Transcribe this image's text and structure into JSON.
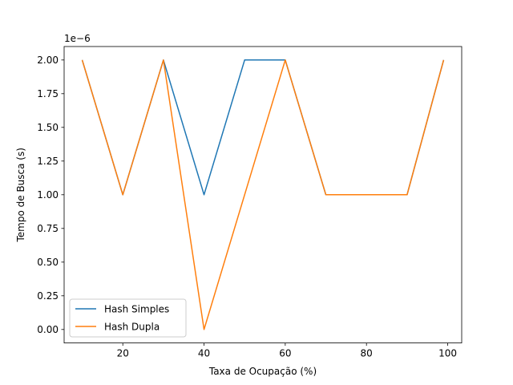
{
  "chart_data": {
    "type": "line",
    "xlabel": "Taxa de Ocupação (%)",
    "ylabel": "Tempo de Busca (s)",
    "y_offset_label": "1e−6",
    "xlim": [
      5.55,
      103.45
    ],
    "ylim": [
      -0.1,
      2.1
    ],
    "y_scale_factor": 1e-06,
    "xticks": [
      20,
      40,
      60,
      80,
      100
    ],
    "xtick_labels": [
      "20",
      "40",
      "60",
      "80",
      "100"
    ],
    "yticks": [
      0,
      0.25,
      0.5,
      0.75,
      1.0,
      1.25,
      1.5,
      1.75,
      2.0
    ],
    "ytick_labels": [
      "0.00",
      "0.25",
      "0.50",
      "0.75",
      "1.00",
      "1.25",
      "1.50",
      "1.75",
      "2.00"
    ],
    "grid": false,
    "legend_position": "lower-left",
    "x": [
      10,
      20,
      30,
      40,
      50,
      60,
      70,
      80,
      90,
      99
    ],
    "series": [
      {
        "name": "Hash Simples",
        "color": "#1f77b4",
        "values": [
          2,
          1,
          2,
          1,
          2,
          2,
          1,
          1,
          1,
          2
        ]
      },
      {
        "name": "Hash Dupla",
        "color": "#ff7f0e",
        "values": [
          2,
          1,
          2,
          0,
          1,
          2,
          1,
          1,
          1,
          2
        ]
      }
    ]
  }
}
